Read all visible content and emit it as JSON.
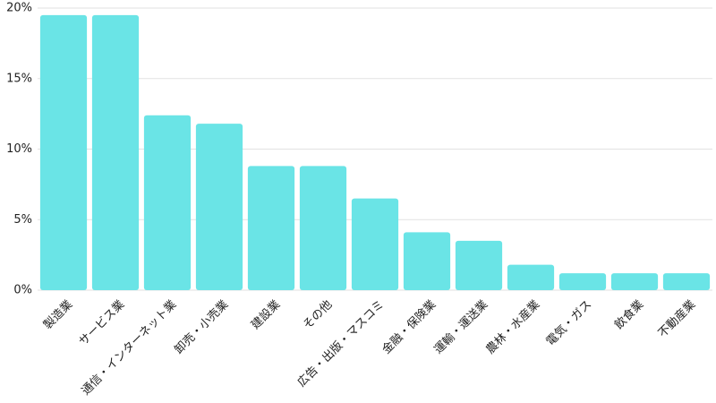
{
  "chart_data": {
    "type": "bar",
    "categories": [
      "製造業",
      "サービス業",
      "通信・インターネット業",
      "卸売・小売業",
      "建設業",
      "その他",
      "広告・出版・マスコミ",
      "金融・保険業",
      "運輸・運送業",
      "農林・水産業",
      "電気・ガス",
      "飲食業",
      "不動産業"
    ],
    "values": [
      19.5,
      19.5,
      12.4,
      11.8,
      8.8,
      8.8,
      6.5,
      4.1,
      3.5,
      1.8,
      1.2,
      1.2,
      1.2
    ],
    "color": "#6ae4e6",
    "ylim": [
      0,
      20
    ],
    "yticks": [
      {
        "value": 0,
        "label": "0%"
      },
      {
        "value": 5,
        "label": "5%"
      },
      {
        "value": 10,
        "label": "10%"
      },
      {
        "value": 15,
        "label": "15%"
      },
      {
        "value": 20,
        "label": "20%"
      }
    ],
    "grid": true
  }
}
